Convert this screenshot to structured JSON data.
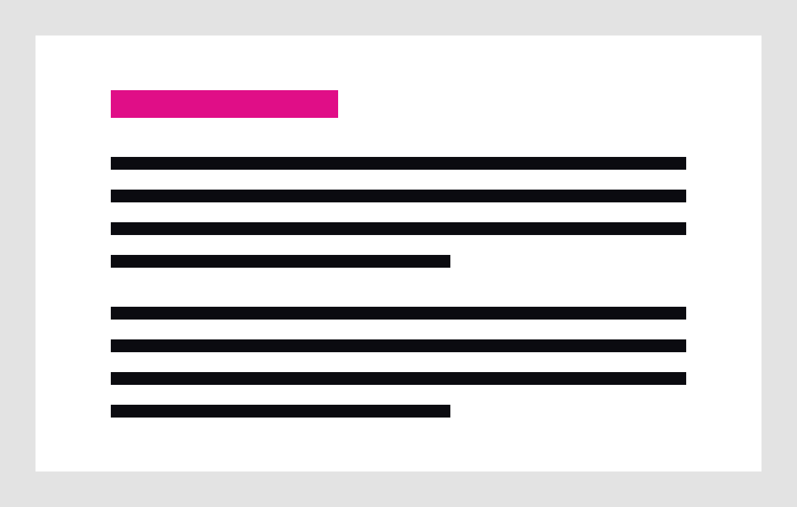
{
  "wireframe": {
    "background_color": "#e3e3e3",
    "card_color": "#ffffff",
    "accent_color": "#e00e87",
    "text_line_color": "#0b0b10",
    "heading": {
      "kind": "accent-block"
    },
    "paragraphs": [
      {
        "lines": [
          "full",
          "full",
          "full",
          "short"
        ]
      },
      {
        "lines": [
          "full",
          "full",
          "full",
          "short"
        ]
      }
    ]
  }
}
